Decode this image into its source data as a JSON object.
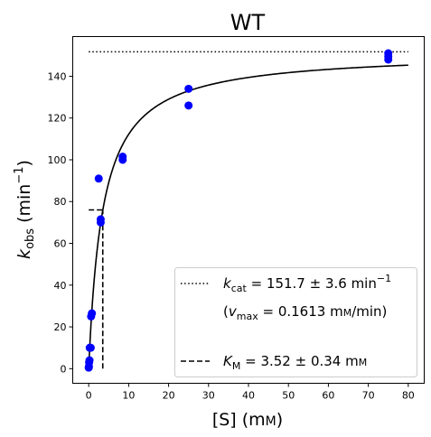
{
  "chart_data": {
    "type": "scatter",
    "title": "WT",
    "xlabel": {
      "main": "[S] (m",
      "smallcaps": "M",
      "close": ")"
    },
    "ylabel": {
      "k": "k",
      "sub": "obs",
      "unit": " (min",
      "sup": "−1",
      "close": ")"
    },
    "xlim": [
      -4,
      84
    ],
    "ylim": [
      -7,
      159
    ],
    "xticks": [
      0,
      10,
      20,
      30,
      40,
      50,
      60,
      70,
      80
    ],
    "yticks": [
      0,
      20,
      40,
      60,
      80,
      100,
      120,
      140
    ],
    "grid": false,
    "legend_placement": "lower-right",
    "series": [
      {
        "kind": "points",
        "color": "#0000ff",
        "x": [
          0,
          0.05,
          0.1,
          0.2,
          0.25,
          0.5,
          0.6,
          0.8,
          2.5,
          3,
          3,
          8.5,
          8.5,
          25,
          25,
          75,
          75,
          75
        ],
        "y": [
          0.5,
          1,
          3,
          4,
          10,
          10,
          25,
          26.5,
          91,
          70,
          71.5,
          100,
          101.5,
          126,
          134,
          148,
          149.5,
          151
        ]
      },
      {
        "kind": "fit",
        "model": "michaelis-menten",
        "kcat": 151.7,
        "km": 3.52,
        "x_range": [
          0,
          80
        ],
        "color": "#000000"
      }
    ],
    "reference_lines": [
      {
        "kind": "horizontal",
        "style": "dotted",
        "y": 151.7,
        "x_range": [
          0,
          80
        ]
      },
      {
        "kind": "horizontal",
        "style": "dashed",
        "y": 76,
        "x_range": [
          0,
          3.52
        ]
      },
      {
        "kind": "vertical",
        "style": "dashed",
        "x": 3.52,
        "y_range": [
          0,
          76
        ]
      }
    ],
    "legend": {
      "kcat_entry": {
        "k": "k",
        "sub": "cat",
        "text": " = 151.7 ± 3.6 min",
        "sup": "−1"
      },
      "vmax_entry": {
        "open": "(",
        "v": "v",
        "sub": "max",
        "text": " = 0.1613 m",
        "smallcaps": "M",
        "close": "/min)"
      },
      "km_entry": {
        "k": "K",
        "sub": "M",
        "text": " = 3.52 ± 0.34 m",
        "smallcaps": "M"
      }
    }
  }
}
